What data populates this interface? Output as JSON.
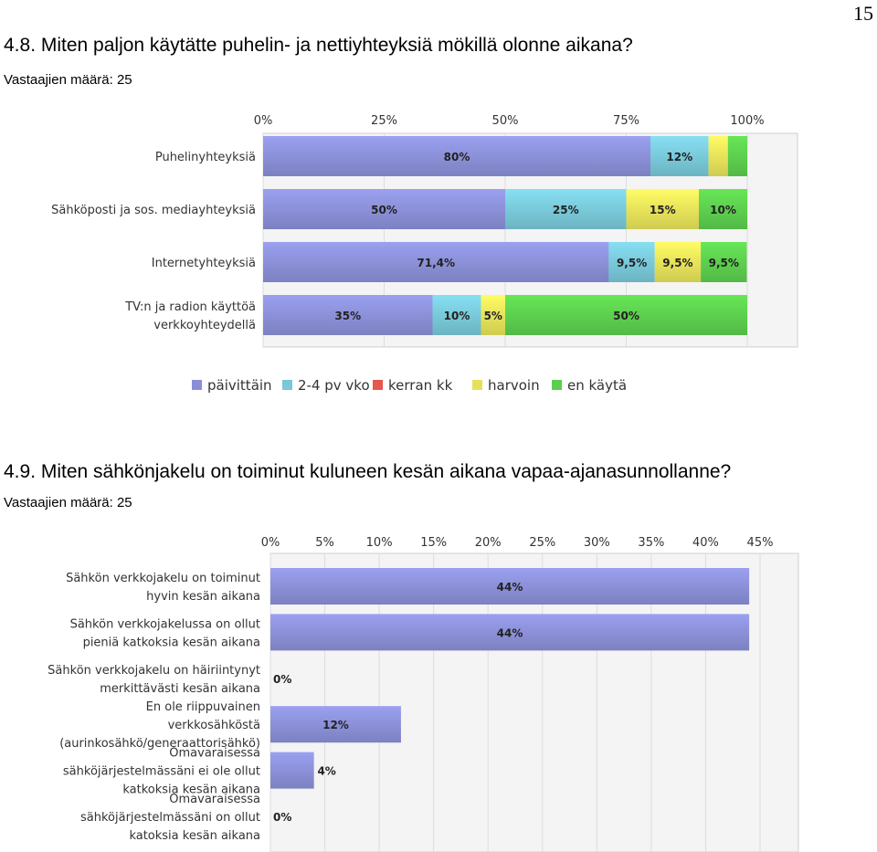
{
  "page_number": "15",
  "q1": {
    "title": "4.8. Miten paljon käytätte puhelin- ja nettiyhteyksiä mökillä olonne aikana?",
    "respondents": "Vastaajien määrä: 25"
  },
  "q2": {
    "title": "4.9. Miten sähkönjakelu on toiminut kuluneen kesän aikana vapaa-ajanasunnollanne?",
    "respondents": "Vastaajien määrä: 25"
  },
  "chart_data": [
    {
      "type": "bar",
      "orientation": "horizontal",
      "stacked": true,
      "title": "",
      "xlabel": "",
      "ylabel": "",
      "xlim": [
        0,
        100
      ],
      "ticks": [
        "0%",
        "25%",
        "50%",
        "75%",
        "100%"
      ],
      "grid": true,
      "legend_position": "bottom",
      "categories": [
        [
          "Puhelinyhteyksiä"
        ],
        [
          "Sähköposti ja sos. mediayhteyksiä"
        ],
        [
          "Internetyhteyksiä"
        ],
        [
          "TV:n ja radion käyttöä",
          "verkkoyhteydellä"
        ]
      ],
      "series": [
        {
          "name": "päivittäin",
          "color": "#8a8fd6",
          "values": [
            80,
            50,
            71.4,
            35
          ],
          "labels": [
            "80%",
            "50%",
            "71,4%",
            "35%"
          ]
        },
        {
          "name": "2-4 pv vko",
          "color": "#78c8d8",
          "values": [
            12,
            25,
            9.5,
            10
          ],
          "labels": [
            "12%",
            "25%",
            "9,5%",
            "10%"
          ]
        },
        {
          "name": "kerran kk",
          "color": "#e5584e",
          "values": [
            0,
            0,
            0,
            0
          ],
          "labels": [
            "",
            "",
            "",
            ""
          ]
        },
        {
          "name": "harvoin",
          "color": "#e6e15a",
          "values": [
            4,
            15,
            9.5,
            5
          ],
          "labels": [
            "",
            "15%",
            "9,5%",
            "5%"
          ]
        },
        {
          "name": "en käytä",
          "color": "#5ccd4e",
          "values": [
            4,
            10,
            9.5,
            50
          ],
          "labels": [
            "",
            "10%",
            "9,5%",
            "50%"
          ]
        }
      ]
    },
    {
      "type": "bar",
      "orientation": "horizontal",
      "stacked": false,
      "title": "",
      "xlabel": "",
      "ylabel": "",
      "xlim": [
        0,
        45
      ],
      "ticks": [
        "0%",
        "5%",
        "10%",
        "15%",
        "20%",
        "25%",
        "30%",
        "35%",
        "40%",
        "45%"
      ],
      "grid": true,
      "categories": [
        [
          "Sähkön verkkojakelu on toiminut",
          "hyvin kesän aikana"
        ],
        [
          "Sähkön verkkojakelussa on ollut",
          "pieniä katkoksia kesän aikana"
        ],
        [
          "Sähkön verkkojakelu on häiriintynyt",
          "merkittävästi kesän aikana"
        ],
        [
          "En ole riippuvainen",
          "verkkosähköstä",
          "(aurinkosähkö/generaattorisähkö)"
        ],
        [
          "Omavaraisessa",
          "sähköjärjestelmässäni ei ole ollut",
          "katkoksia kesän aikana"
        ],
        [
          "Omavaraisessa",
          "sähköjärjestelmässäni on ollut",
          "katoksia kesän aikana"
        ]
      ],
      "series": [
        {
          "color": "#8a8fd6",
          "values": [
            44,
            44,
            0,
            12,
            4,
            0
          ],
          "labels": [
            "44%",
            "44%",
            "0%",
            "12%",
            "4%",
            "0%"
          ]
        }
      ]
    }
  ]
}
